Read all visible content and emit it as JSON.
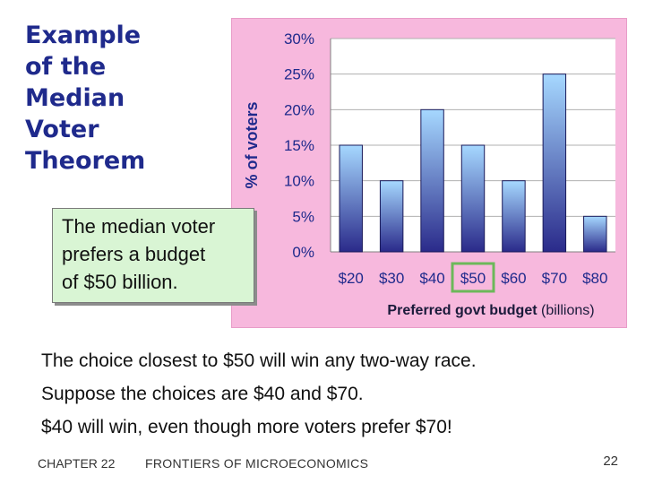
{
  "slide": {
    "title_lines": [
      "Example",
      "of the",
      "Median",
      "Voter",
      "Theorem"
    ],
    "callout_lines": [
      "The median voter",
      "prefers a budget",
      "of $50 billion."
    ],
    "bullets": [
      "The choice closest to $50 will win any two-way race.",
      "Suppose the choices are $40 and $70.",
      "$40 will win, even though more voters prefer $70!"
    ],
    "footer": {
      "chapter": "CHAPTER 22",
      "topic": "FRONTIERS OF MICROECONOMICS",
      "page": "22"
    }
  },
  "chart_data": {
    "type": "bar",
    "categories": [
      "$20",
      "$30",
      "$40",
      "$50",
      "$60",
      "$70",
      "$80"
    ],
    "values": [
      15,
      10,
      20,
      15,
      10,
      25,
      5
    ],
    "ylabel": "% of voters",
    "xlabel_bold": "Preferred govt budget",
    "xlabel_rest": " (billions)",
    "yticks": [
      "0%",
      "5%",
      "10%",
      "15%",
      "20%",
      "25%",
      "30%"
    ],
    "ylim": [
      0,
      30
    ],
    "highlight_category": "$50",
    "highlight_color": "#6cb85a",
    "background_color": "#f7b8dd",
    "bar_color_top": "#a6d8ff",
    "bar_color_bottom": "#2a2a8a"
  }
}
